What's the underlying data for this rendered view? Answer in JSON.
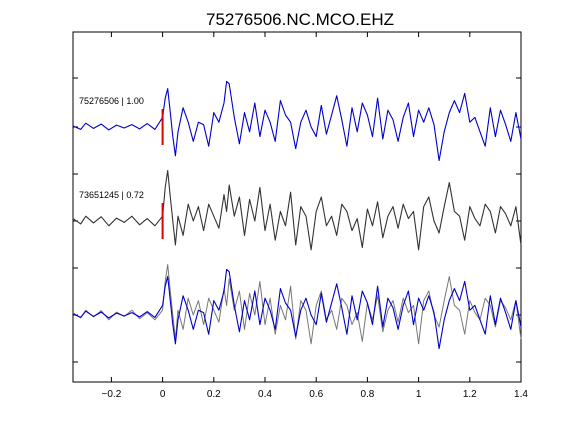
{
  "chart_data": {
    "type": "line",
    "title": "75276506.NC.MCO.EHZ",
    "xlabel": "",
    "ylabel": "",
    "xlim": [
      -0.35,
      1.4
    ],
    "x_ticks": [
      -0.2,
      0,
      0.2,
      0.4,
      0.6,
      0.8,
      1,
      1.2,
      1.4
    ],
    "x_tick_labels": [
      "−0.2",
      "0",
      "0.2",
      "0.4",
      "0.6",
      "0.8",
      "1",
      "1.2",
      "1.4"
    ],
    "y_ticks": [
      0,
      1,
      2,
      3,
      4,
      5,
      6
    ],
    "grid": false,
    "legend": "none",
    "colors": {
      "primary": "#0000cc",
      "secondary": "#333333",
      "overlay_secondary": "#777777",
      "pick": "#dd0000"
    },
    "traces": [
      {
        "label": "75276506 | 1.00",
        "color": "#0000cc",
        "x": [
          -0.35,
          -0.32,
          -0.3,
          -0.27,
          -0.24,
          -0.21,
          -0.18,
          -0.15,
          -0.12,
          -0.09,
          -0.06,
          -0.03,
          0.0,
          0.01,
          0.02,
          0.03,
          0.04,
          0.05,
          0.06,
          0.08,
          0.1,
          0.12,
          0.14,
          0.16,
          0.18,
          0.2,
          0.22,
          0.24,
          0.25,
          0.26,
          0.28,
          0.3,
          0.32,
          0.34,
          0.36,
          0.38,
          0.4,
          0.42,
          0.44,
          0.46,
          0.48,
          0.5,
          0.52,
          0.54,
          0.56,
          0.58,
          0.6,
          0.62,
          0.64,
          0.66,
          0.68,
          0.7,
          0.72,
          0.74,
          0.76,
          0.78,
          0.8,
          0.82,
          0.84,
          0.86,
          0.88,
          0.9,
          0.92,
          0.94,
          0.96,
          0.98,
          1.0,
          1.02,
          1.04,
          1.06,
          1.08,
          1.1,
          1.12,
          1.14,
          1.16,
          1.18,
          1.2,
          1.22,
          1.24,
          1.26,
          1.28,
          1.3,
          1.32,
          1.34,
          1.36,
          1.38,
          1.4
        ],
        "y": [
          0.02,
          -0.05,
          0.08,
          -0.03,
          0.06,
          -0.06,
          0.04,
          -0.02,
          0.05,
          -0.04,
          0.07,
          -0.05,
          0.2,
          0.6,
          0.8,
          0.3,
          -0.2,
          -0.6,
          -0.1,
          0.4,
          0.1,
          -0.3,
          0.1,
          0.05,
          -0.4,
          0.3,
          0.1,
          0.5,
          0.95,
          0.9,
          0.2,
          -0.35,
          0.3,
          -0.1,
          0.5,
          -0.2,
          0.35,
          0.1,
          -0.3,
          0.55,
          0.25,
          0.1,
          -0.45,
          0.1,
          0.35,
          0.0,
          -0.2,
          0.45,
          -0.15,
          0.25,
          0.65,
          0.15,
          -0.4,
          0.4,
          -0.1,
          0.5,
          0.25,
          -0.2,
          0.6,
          -0.25,
          0.35,
          0.15,
          -0.3,
          0.2,
          0.5,
          -0.2,
          0.35,
          0.1,
          0.4,
          0.05,
          -0.7,
          -0.1,
          0.3,
          0.55,
          0.3,
          0.7,
          0.1,
          0.2,
          -0.1,
          -0.4,
          0.4,
          -0.2,
          0.35,
          0.05,
          -0.3,
          0.3,
          -0.25
        ]
      },
      {
        "label": "73651245 | 0.72",
        "color": "#333333",
        "x": [
          -0.35,
          -0.32,
          -0.3,
          -0.27,
          -0.24,
          -0.21,
          -0.18,
          -0.15,
          -0.12,
          -0.09,
          -0.06,
          -0.03,
          0.0,
          0.01,
          0.02,
          0.03,
          0.04,
          0.05,
          0.06,
          0.08,
          0.1,
          0.12,
          0.14,
          0.16,
          0.18,
          0.2,
          0.22,
          0.24,
          0.25,
          0.26,
          0.28,
          0.3,
          0.32,
          0.34,
          0.36,
          0.38,
          0.4,
          0.42,
          0.44,
          0.46,
          0.48,
          0.5,
          0.52,
          0.54,
          0.56,
          0.58,
          0.6,
          0.62,
          0.64,
          0.66,
          0.68,
          0.7,
          0.72,
          0.74,
          0.76,
          0.78,
          0.8,
          0.82,
          0.84,
          0.86,
          0.88,
          0.9,
          0.92,
          0.94,
          0.96,
          0.98,
          1.0,
          1.02,
          1.04,
          1.06,
          1.08,
          1.1,
          1.12,
          1.14,
          1.16,
          1.18,
          1.2,
          1.22,
          1.24,
          1.26,
          1.28,
          1.3,
          1.32,
          1.34,
          1.36,
          1.38,
          1.4
        ],
        "y": [
          0.05,
          -0.06,
          0.1,
          -0.04,
          0.09,
          -0.1,
          0.06,
          -0.03,
          0.1,
          -0.08,
          0.05,
          -0.1,
          0.1,
          0.7,
          1.05,
          0.5,
          0.0,
          -0.5,
          0.1,
          -0.3,
          0.35,
          0.0,
          0.3,
          -0.2,
          0.35,
          0.1,
          -0.15,
          0.55,
          0.2,
          0.75,
          0.1,
          0.5,
          -0.3,
          0.45,
          0.0,
          0.7,
          -0.2,
          0.35,
          -0.4,
          0.2,
          -0.1,
          0.6,
          -0.5,
          0.3,
          0.1,
          -0.6,
          0.2,
          0.5,
          -0.1,
          0.1,
          -0.3,
          0.35,
          0.2,
          -0.2,
          0.05,
          -0.55,
          0.25,
          -0.1,
          0.4,
          -0.35,
          0.1,
          0.3,
          -0.15,
          0.35,
          0.05,
          0.2,
          -0.6,
          0.3,
          0.5,
          0.0,
          -0.25,
          0.3,
          0.8,
          0.2,
          0.1,
          -0.4,
          0.3,
          0.05,
          -0.1,
          0.35,
          0.2,
          -0.25,
          0.3,
          0.15,
          -0.1,
          0.3,
          -0.5
        ]
      }
    ],
    "picks": [
      0,
      0
    ],
    "overlay": true
  }
}
